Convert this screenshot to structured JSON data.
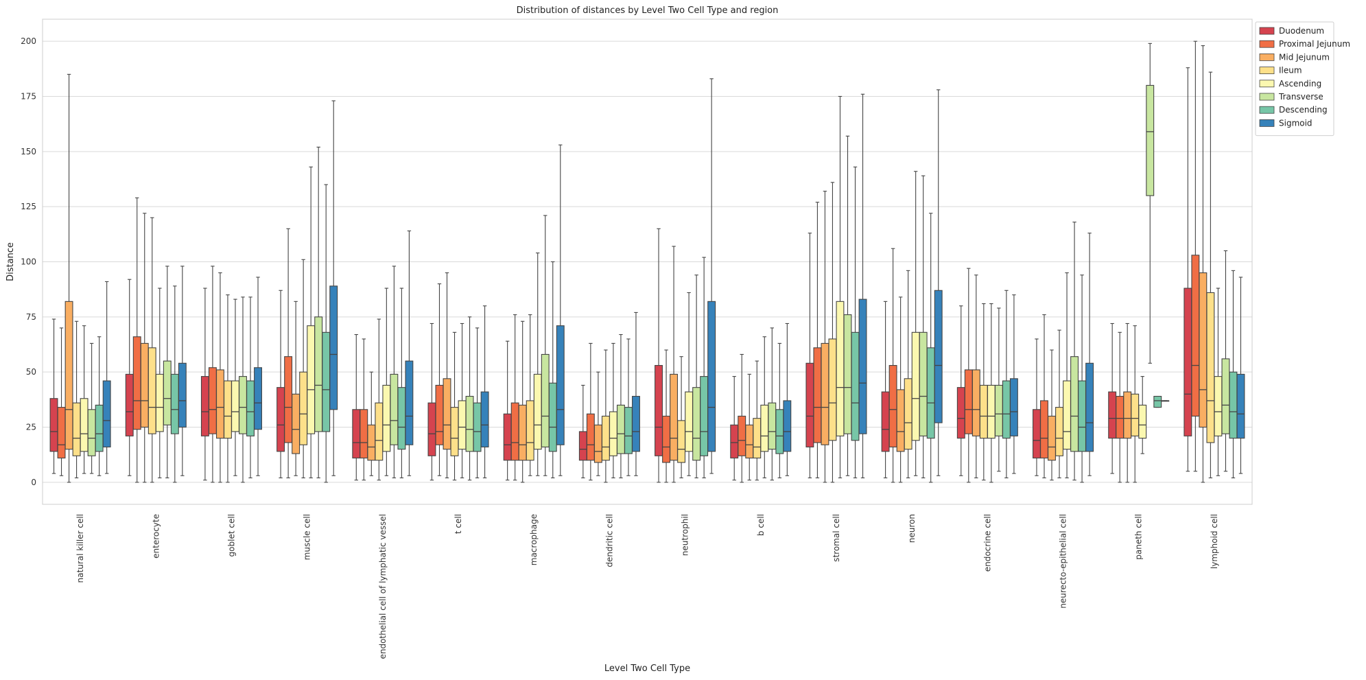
{
  "chart_data": {
    "type": "box",
    "title": "Distribution of distances by Level Two Cell Type and region",
    "xlabel": "Level Two Cell Type",
    "ylabel": "Distance",
    "ylim": [
      -10,
      210
    ],
    "yticks": [
      0,
      25,
      50,
      75,
      100,
      125,
      150,
      175,
      200
    ],
    "grid": "horizontal",
    "legend_position": "upper-right-outside",
    "categories": [
      "natural killer cell",
      "enterocyte",
      "goblet cell",
      "muscle cell",
      "endothelial cell of lymphatic vessel",
      "t cell",
      "macrophage",
      "dendritic cell",
      "neutrophil",
      "b cell",
      "stromal cell",
      "neuron",
      "endocrine cell",
      "neurecto-epithelial cell",
      "paneth cell",
      "lymphoid cell"
    ],
    "series": [
      {
        "name": "Duodenum",
        "color": "#d5434f",
        "boxes": [
          [
            4,
            14,
            23,
            38,
            74
          ],
          [
            3,
            21,
            32,
            49,
            92
          ],
          [
            1,
            21,
            32,
            48,
            88
          ],
          [
            2,
            14,
            26,
            43,
            87
          ],
          [
            1,
            11,
            18,
            33,
            67
          ],
          [
            1,
            12,
            22,
            36,
            72
          ],
          [
            1,
            10,
            17,
            31,
            64
          ],
          [
            2,
            10,
            15,
            23,
            44
          ],
          [
            0,
            12,
            25,
            53,
            115
          ],
          [
            1,
            11,
            18,
            26,
            48
          ],
          [
            2,
            16,
            30,
            54,
            113
          ],
          [
            2,
            14,
            24,
            41,
            82
          ],
          [
            3,
            20,
            29,
            43,
            80
          ],
          [
            3,
            11,
            19,
            33,
            65
          ],
          [
            4,
            20,
            29,
            41,
            72
          ],
          [
            5,
            21,
            40,
            88,
            188
          ]
        ]
      },
      {
        "name": "Proximal Jejunum",
        "color": "#f06e45",
        "boxes": [
          [
            3,
            11,
            17,
            34,
            70
          ],
          [
            0,
            24,
            37,
            66,
            129
          ],
          [
            0,
            22,
            33,
            52,
            98
          ],
          [
            2,
            18,
            34,
            57,
            115
          ],
          [
            1,
            11,
            18,
            33,
            65
          ],
          [
            3,
            17,
            23,
            44,
            90
          ],
          [
            1,
            10,
            18,
            36,
            76
          ],
          [
            1,
            10,
            17,
            31,
            63
          ],
          [
            0,
            9,
            16,
            30,
            60
          ],
          [
            0,
            12,
            19,
            30,
            58
          ],
          [
            2,
            18,
            34,
            61,
            127
          ],
          [
            0,
            16,
            33,
            53,
            106
          ],
          [
            0,
            22,
            33,
            51,
            97
          ],
          [
            2,
            11,
            20,
            37,
            76
          ],
          [
            0,
            20,
            29,
            39,
            68
          ],
          [
            5,
            30,
            53,
            103,
            200
          ]
        ]
      },
      {
        "name": "Mid Jejunum",
        "color": "#f9ae62",
        "boxes": [
          [
            0,
            15,
            33,
            82,
            185
          ],
          [
            0,
            25,
            37,
            63,
            122
          ],
          [
            0,
            20,
            34,
            51,
            95
          ],
          [
            3,
            13,
            24,
            40,
            82
          ],
          [
            3,
            10,
            16,
            26,
            50
          ],
          [
            2,
            15,
            26,
            47,
            95
          ],
          [
            0,
            10,
            17,
            35,
            73
          ],
          [
            3,
            9,
            14,
            26,
            50
          ],
          [
            0,
            10,
            20,
            49,
            107
          ],
          [
            1,
            11,
            17,
            26,
            49
          ],
          [
            0,
            17,
            34,
            63,
            132
          ],
          [
            0,
            14,
            23,
            42,
            84
          ],
          [
            2,
            21,
            33,
            51,
            94
          ],
          [
            1,
            10,
            16,
            30,
            60
          ],
          [
            0,
            20,
            29,
            41,
            72
          ],
          [
            0,
            25,
            42,
            95,
            198
          ]
        ]
      },
      {
        "name": "Ileum",
        "color": "#fde08a",
        "boxes": [
          [
            2,
            12,
            20,
            36,
            73
          ],
          [
            0,
            22,
            34,
            61,
            120
          ],
          [
            0,
            20,
            30,
            46,
            85
          ],
          [
            2,
            17,
            31,
            50,
            101
          ],
          [
            1,
            10,
            19,
            36,
            74
          ],
          [
            1,
            12,
            20,
            34,
            68
          ],
          [
            3,
            10,
            18,
            37,
            76
          ],
          [
            0,
            10,
            16,
            30,
            60
          ],
          [
            2,
            9,
            15,
            28,
            57
          ],
          [
            1,
            11,
            16,
            29,
            55
          ],
          [
            0,
            19,
            36,
            65,
            136
          ],
          [
            2,
            15,
            27,
            47,
            96
          ],
          [
            1,
            20,
            30,
            44,
            81
          ],
          [
            2,
            12,
            20,
            34,
            69
          ],
          [
            0,
            21,
            29,
            40,
            71
          ],
          [
            2,
            18,
            37,
            86,
            186
          ]
        ]
      },
      {
        "name": "Ascending",
        "color": "#fbf8b0",
        "boxes": [
          [
            4,
            14,
            22,
            38,
            71
          ],
          [
            2,
            23,
            34,
            49,
            88
          ],
          [
            3,
            23,
            32,
            46,
            83
          ],
          [
            2,
            22,
            42,
            71,
            143
          ],
          [
            3,
            14,
            26,
            44,
            88
          ],
          [
            2,
            15,
            25,
            37,
            72
          ],
          [
            3,
            15,
            26,
            49,
            104
          ],
          [
            2,
            12,
            20,
            32,
            63
          ],
          [
            3,
            14,
            23,
            41,
            86
          ],
          [
            2,
            14,
            21,
            35,
            66
          ],
          [
            2,
            21,
            43,
            82,
            175
          ],
          [
            3,
            19,
            38,
            68,
            141
          ],
          [
            0,
            20,
            30,
            44,
            81
          ],
          [
            2,
            15,
            23,
            46,
            95
          ],
          [
            13,
            20,
            26,
            35,
            48
          ],
          [
            3,
            21,
            32,
            48,
            88
          ]
        ]
      },
      {
        "name": "Transverse",
        "color": "#c8e6a0",
        "boxes": [
          [
            4,
            12,
            20,
            33,
            63
          ],
          [
            2,
            26,
            38,
            55,
            98
          ],
          [
            0,
            22,
            34,
            48,
            84
          ],
          [
            2,
            23,
            44,
            75,
            152
          ],
          [
            2,
            17,
            28,
            49,
            98
          ],
          [
            1,
            14,
            24,
            39,
            75
          ],
          [
            3,
            16,
            30,
            58,
            121
          ],
          [
            2,
            13,
            22,
            35,
            67
          ],
          [
            2,
            10,
            20,
            43,
            94
          ],
          [
            1,
            15,
            23,
            36,
            70
          ],
          [
            3,
            22,
            43,
            76,
            157
          ],
          [
            2,
            21,
            39,
            68,
            139
          ],
          [
            5,
            21,
            31,
            44,
            79
          ],
          [
            1,
            14,
            30,
            57,
            118
          ],
          [
            54,
            130,
            159,
            180,
            199
          ],
          [
            5,
            22,
            35,
            56,
            105
          ]
        ]
      },
      {
        "name": "Descending",
        "color": "#77c6a7",
        "boxes": [
          [
            3,
            14,
            22,
            35,
            66
          ],
          [
            0,
            22,
            33,
            49,
            89
          ],
          [
            2,
            21,
            32,
            46,
            84
          ],
          [
            0,
            23,
            42,
            68,
            135
          ],
          [
            2,
            15,
            25,
            43,
            88
          ],
          [
            2,
            14,
            23,
            36,
            70
          ],
          [
            2,
            14,
            25,
            45,
            100
          ],
          [
            3,
            13,
            21,
            34,
            65
          ],
          [
            2,
            12,
            23,
            48,
            102
          ],
          [
            2,
            13,
            21,
            33,
            63
          ],
          [
            2,
            19,
            36,
            68,
            143
          ],
          [
            0,
            20,
            36,
            61,
            122
          ],
          [
            2,
            20,
            31,
            46,
            87
          ],
          [
            0,
            14,
            25,
            46,
            94
          ],
          [
            34,
            34,
            37,
            39,
            39
          ],
          [
            2,
            20,
            32,
            50,
            96
          ]
        ]
      },
      {
        "name": "Sigmoid",
        "color": "#3682ba",
        "boxes": [
          [
            4,
            16,
            28,
            46,
            91
          ],
          [
            3,
            25,
            37,
            54,
            98
          ],
          [
            3,
            24,
            36,
            52,
            93
          ],
          [
            3,
            33,
            58,
            89,
            173
          ],
          [
            3,
            17,
            30,
            55,
            114
          ],
          [
            2,
            16,
            26,
            41,
            80
          ],
          [
            3,
            17,
            33,
            71,
            153
          ],
          [
            3,
            14,
            23,
            39,
            77
          ],
          [
            4,
            14,
            34,
            82,
            183
          ],
          [
            3,
            14,
            23,
            37,
            72
          ],
          [
            2,
            22,
            45,
            83,
            176
          ],
          [
            3,
            27,
            53,
            87,
            178
          ],
          [
            4,
            21,
            32,
            47,
            85
          ],
          [
            3,
            14,
            27,
            54,
            113
          ],
          [
            37,
            37,
            37,
            37,
            37
          ],
          [
            4,
            20,
            31,
            49,
            93
          ]
        ]
      }
    ]
  }
}
